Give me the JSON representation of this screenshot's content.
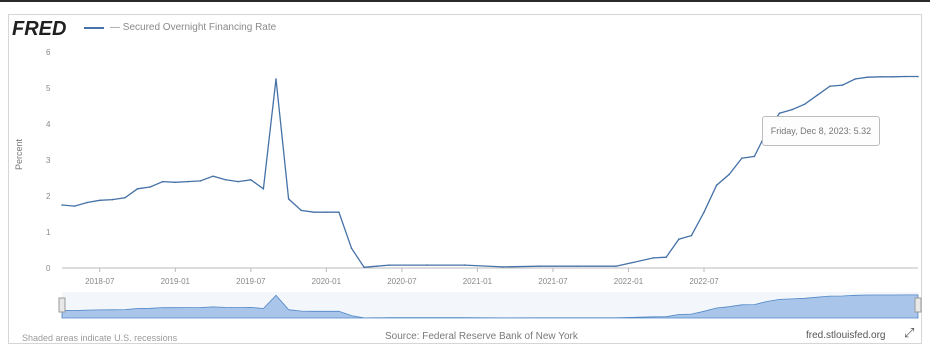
{
  "header": {
    "logo": "FRED",
    "legend_label": "— Secured Overnight Financing Rate"
  },
  "tooltip": "Friday, Dec 8, 2023: 5.32",
  "footer": {
    "left": "Shaded areas indicate U.S. recessions",
    "center": "Source: Federal Reserve Bank of New York",
    "right": "fred.stlouisfed.org"
  },
  "colors": {
    "line": "#4572a7",
    "navigator": "#a9c6ea"
  },
  "chart_data": {
    "type": "line",
    "title": "",
    "xlabel": "",
    "ylabel": "Percent",
    "ylim": [
      0,
      6
    ],
    "yticks": [
      0,
      1,
      2,
      3,
      4,
      5,
      6
    ],
    "xtick_labels": [
      "2018-07",
      "2019-01",
      "2019-07",
      "2020-01",
      "2020-07",
      "2021-01",
      "2021-07",
      "2022-01",
      "2022-07"
    ],
    "grid": false,
    "series": [
      {
        "name": "Secured Overnight Financing Rate",
        "x": [
          "2018-04",
          "2018-05",
          "2018-06",
          "2018-07",
          "2018-08",
          "2018-09",
          "2018-10",
          "2018-11",
          "2018-12",
          "2019-01",
          "2019-02",
          "2019-03",
          "2019-04",
          "2019-05",
          "2019-06",
          "2019-07",
          "2019-08",
          "2019-09",
          "2019-10",
          "2019-11",
          "2019-12",
          "2020-01",
          "2020-02",
          "2020-03",
          "2020-04",
          "2020-05",
          "2020-06",
          "2020-09",
          "2020-12",
          "2021-03",
          "2021-06",
          "2021-09",
          "2021-12",
          "2022-03",
          "2022-04",
          "2022-05",
          "2022-06",
          "2022-07",
          "2022-08",
          "2022-09",
          "2022-10",
          "2022-11",
          "2022-12",
          "2023-01",
          "2023-02",
          "2023-03",
          "2023-04",
          "2023-05",
          "2023-06",
          "2023-07",
          "2023-08",
          "2023-09",
          "2023-10",
          "2023-11",
          "2023-12"
        ],
        "values": [
          1.75,
          1.72,
          1.82,
          1.88,
          1.9,
          1.95,
          2.2,
          2.25,
          2.4,
          2.38,
          2.4,
          2.42,
          2.55,
          2.45,
          2.4,
          2.45,
          2.2,
          5.25,
          1.92,
          1.6,
          1.55,
          1.55,
          1.55,
          0.55,
          0.02,
          0.05,
          0.08,
          0.08,
          0.08,
          0.03,
          0.05,
          0.05,
          0.05,
          0.28,
          0.3,
          0.8,
          0.9,
          1.55,
          2.3,
          2.6,
          3.05,
          3.1,
          3.8,
          4.3,
          4.4,
          4.55,
          4.8,
          5.05,
          5.08,
          5.25,
          5.3,
          5.31,
          5.31,
          5.32,
          5.32
        ]
      }
    ]
  }
}
